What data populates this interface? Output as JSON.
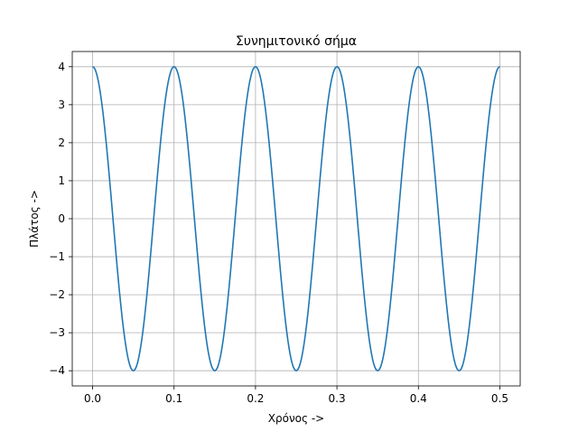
{
  "chart_data": {
    "type": "line",
    "title": "Συνημιτονικό σήμα",
    "xlabel": "Χρόνος ->",
    "ylabel": "Πλάτος ->",
    "xlim": [
      -0.025,
      0.525
    ],
    "ylim": [
      -4.4,
      4.4
    ],
    "xticks": [
      0.0,
      0.1,
      0.2,
      0.3,
      0.4,
      0.5
    ],
    "xtick_labels": [
      "0.0",
      "0.1",
      "0.2",
      "0.3",
      "0.4",
      "0.5"
    ],
    "yticks": [
      -4,
      -3,
      -2,
      -1,
      0,
      1,
      2,
      3,
      4
    ],
    "ytick_labels": [
      "−4",
      "−3",
      "−2",
      "−1",
      "0",
      "1",
      "2",
      "3",
      "4"
    ],
    "grid": true,
    "series": [
      {
        "color": "#1f77b4",
        "function": "4*cos(2*pi*10*t)",
        "x_range": [
          0.0,
          0.5
        ],
        "x": [
          0.0,
          0.025,
          0.05,
          0.075,
          0.1,
          0.125,
          0.15,
          0.175,
          0.2,
          0.225,
          0.25,
          0.275,
          0.3,
          0.325,
          0.35,
          0.375,
          0.4,
          0.425,
          0.45,
          0.475,
          0.5
        ],
        "y": [
          4,
          0,
          -4,
          0,
          4,
          0,
          -4,
          0,
          4,
          0,
          -4,
          0,
          4,
          0,
          -4,
          0,
          4,
          0,
          -4,
          0,
          4
        ]
      }
    ]
  }
}
